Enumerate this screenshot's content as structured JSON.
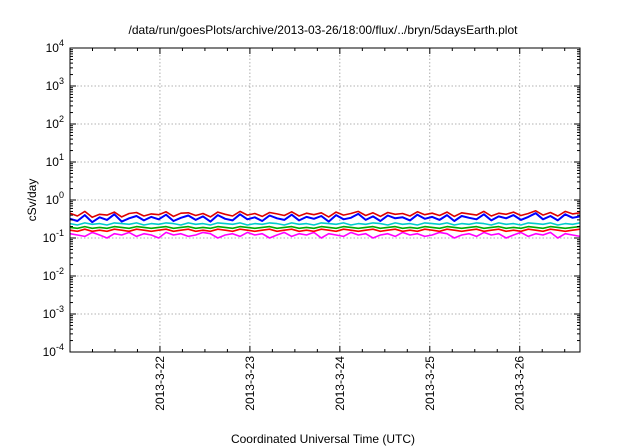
{
  "chart_data": {
    "type": "line",
    "title": "/data/run/goesPlots/archive/2013-03-26/18:00/flux/../bryn/5daysEarth.plot",
    "xlabel": "Coordinated Universal Time (UTC)",
    "ylabel": "cSv/day",
    "yscale": "log",
    "ylim": [
      0.0001,
      10000
    ],
    "xlim": [
      0,
      5.67
    ],
    "grid": true,
    "legend": "none",
    "yticks": [
      {
        "value": 0.0001,
        "base": "10",
        "exp": "-4"
      },
      {
        "value": 0.001,
        "base": "10",
        "exp": "-3"
      },
      {
        "value": 0.01,
        "base": "10",
        "exp": "-2"
      },
      {
        "value": 0.1,
        "base": "10",
        "exp": "-1"
      },
      {
        "value": 1,
        "base": "10",
        "exp": "0"
      },
      {
        "value": 10,
        "base": "10",
        "exp": "1"
      },
      {
        "value": 100,
        "base": "10",
        "exp": "2"
      },
      {
        "value": 1000,
        "base": "10",
        "exp": "3"
      },
      {
        "value": 10000,
        "base": "10",
        "exp": "4"
      }
    ],
    "xticks": [
      {
        "value": 1,
        "label": "2013-3-22"
      },
      {
        "value": 2,
        "label": "2013-3-23"
      },
      {
        "value": 3,
        "label": "2013-3-24"
      },
      {
        "value": 4,
        "label": "2013-3-25"
      },
      {
        "value": 5,
        "label": "2013-3-26"
      }
    ],
    "series": [
      {
        "color": "#ff00ff",
        "values": [
          0.13,
          0.12,
          0.11,
          0.14,
          0.12,
          0.1,
          0.13,
          0.12,
          0.14,
          0.11,
          0.13,
          0.12,
          0.1,
          0.14,
          0.12,
          0.13,
          0.11,
          0.12,
          0.14,
          0.13,
          0.1,
          0.12,
          0.13,
          0.11,
          0.14,
          0.12,
          0.13,
          0.1,
          0.12,
          0.14,
          0.11,
          0.13,
          0.12,
          0.14,
          0.1,
          0.13,
          0.12,
          0.11,
          0.14,
          0.12,
          0.13,
          0.1,
          0.12,
          0.13,
          0.11,
          0.14,
          0.12,
          0.13,
          0.11,
          0.12,
          0.14,
          0.13,
          0.1,
          0.12,
          0.13,
          0.11,
          0.14,
          0.12,
          0.13,
          0.1,
          0.12,
          0.14,
          0.11,
          0.13,
          0.12,
          0.14,
          0.1,
          0.13,
          0.12,
          0.11
        ]
      },
      {
        "color": "#ff0000",
        "values": [
          0.16,
          0.15,
          0.17,
          0.15,
          0.16,
          0.15,
          0.17,
          0.16,
          0.15,
          0.17,
          0.16,
          0.15,
          0.16,
          0.17,
          0.15,
          0.16,
          0.17,
          0.15,
          0.16,
          0.15,
          0.17,
          0.16,
          0.15,
          0.17,
          0.16,
          0.15,
          0.16,
          0.17,
          0.15,
          0.16,
          0.17,
          0.15,
          0.16,
          0.15,
          0.17,
          0.16,
          0.15,
          0.17,
          0.16,
          0.15,
          0.16,
          0.17,
          0.15,
          0.16,
          0.17,
          0.15,
          0.16,
          0.15,
          0.17,
          0.16,
          0.15,
          0.17,
          0.16,
          0.15,
          0.16,
          0.17,
          0.15,
          0.16,
          0.17,
          0.15,
          0.16,
          0.15,
          0.17,
          0.16,
          0.15,
          0.17,
          0.16,
          0.15,
          0.16,
          0.17
        ]
      },
      {
        "color": "#00aa00",
        "values": [
          0.19,
          0.18,
          0.2,
          0.18,
          0.19,
          0.18,
          0.2,
          0.19,
          0.18,
          0.2,
          0.19,
          0.18,
          0.19,
          0.2,
          0.18,
          0.19,
          0.2,
          0.18,
          0.19,
          0.18,
          0.2,
          0.19,
          0.18,
          0.2,
          0.19,
          0.18,
          0.19,
          0.2,
          0.18,
          0.19,
          0.2,
          0.18,
          0.19,
          0.18,
          0.2,
          0.19,
          0.18,
          0.2,
          0.19,
          0.18,
          0.19,
          0.2,
          0.18,
          0.19,
          0.2,
          0.18,
          0.19,
          0.18,
          0.2,
          0.19,
          0.18,
          0.2,
          0.19,
          0.18,
          0.19,
          0.2,
          0.18,
          0.19,
          0.2,
          0.18,
          0.19,
          0.18,
          0.2,
          0.19,
          0.18,
          0.2,
          0.19,
          0.18,
          0.19,
          0.2
        ]
      },
      {
        "color": "#00cccc",
        "values": [
          0.24,
          0.22,
          0.25,
          0.23,
          0.24,
          0.22,
          0.25,
          0.24,
          0.23,
          0.25,
          0.22,
          0.24,
          0.23,
          0.25,
          0.24,
          0.22,
          0.25,
          0.23,
          0.24,
          0.22,
          0.25,
          0.24,
          0.23,
          0.25,
          0.22,
          0.24,
          0.23,
          0.25,
          0.24,
          0.22,
          0.25,
          0.23,
          0.24,
          0.22,
          0.25,
          0.24,
          0.23,
          0.25,
          0.22,
          0.24,
          0.23,
          0.25,
          0.24,
          0.22,
          0.25,
          0.23,
          0.24,
          0.22,
          0.25,
          0.24,
          0.23,
          0.25,
          0.22,
          0.24,
          0.23,
          0.25,
          0.24,
          0.22,
          0.25,
          0.23,
          0.24,
          0.22,
          0.25,
          0.24,
          0.23,
          0.25,
          0.22,
          0.24,
          0.23,
          0.25
        ]
      },
      {
        "color": "#0000ff",
        "values": [
          0.32,
          0.28,
          0.4,
          0.26,
          0.35,
          0.3,
          0.42,
          0.27,
          0.33,
          0.38,
          0.29,
          0.36,
          0.31,
          0.41,
          0.28,
          0.34,
          0.39,
          0.3,
          0.37,
          0.27,
          0.4,
          0.32,
          0.29,
          0.42,
          0.31,
          0.35,
          0.28,
          0.39,
          0.33,
          0.3,
          0.41,
          0.29,
          0.36,
          0.32,
          0.38,
          0.27,
          0.4,
          0.31,
          0.34,
          0.43,
          0.3,
          0.37,
          0.28,
          0.39,
          0.33,
          0.35,
          0.29,
          0.41,
          0.32,
          0.36,
          0.3,
          0.4,
          0.28,
          0.38,
          0.34,
          0.31,
          0.42,
          0.29,
          0.37,
          0.33,
          0.4,
          0.3,
          0.36,
          0.45,
          0.31,
          0.38,
          0.29,
          0.42,
          0.34,
          0.37
        ]
      },
      {
        "color": "#dd0000",
        "values": [
          0.45,
          0.38,
          0.5,
          0.35,
          0.42,
          0.4,
          0.48,
          0.36,
          0.44,
          0.47,
          0.38,
          0.43,
          0.41,
          0.49,
          0.37,
          0.45,
          0.46,
          0.39,
          0.44,
          0.36,
          0.48,
          0.42,
          0.38,
          0.5,
          0.4,
          0.44,
          0.37,
          0.47,
          0.43,
          0.39,
          0.49,
          0.38,
          0.45,
          0.41,
          0.46,
          0.36,
          0.48,
          0.4,
          0.44,
          0.5,
          0.39,
          0.46,
          0.37,
          0.47,
          0.42,
          0.44,
          0.38,
          0.49,
          0.41,
          0.45,
          0.39,
          0.48,
          0.37,
          0.46,
          0.43,
          0.4,
          0.5,
          0.38,
          0.45,
          0.42,
          0.48,
          0.39,
          0.44,
          0.52,
          0.4,
          0.47,
          0.38,
          0.5,
          0.43,
          0.46
        ]
      }
    ]
  }
}
